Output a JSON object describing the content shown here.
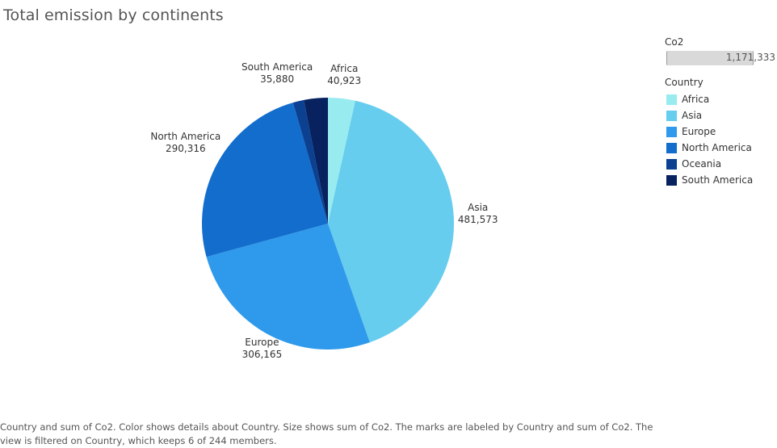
{
  "title": "Total emission by continents",
  "size_legend": {
    "title": "Co2",
    "max_value": "1,171,333"
  },
  "color_legend": {
    "title": "Country",
    "items": [
      {
        "label": "Africa",
        "color": "#98ebee"
      },
      {
        "label": "Asia",
        "color": "#67cdee"
      },
      {
        "label": "Europe",
        "color": "#2f9aeb"
      },
      {
        "label": "North America",
        "color": "#126dcc"
      },
      {
        "label": "Oceania",
        "color": "#0b4190"
      },
      {
        "label": "South America",
        "color": "#082260"
      }
    ]
  },
  "caption": "Country and sum of Co2.  Color shows details about Country.  Size shows sum of Co2.  The marks are labeled by Country and sum of Co2. The view is filtered on Country, which keeps 6 of 244 members.",
  "chart_data": {
    "type": "pie",
    "title": "Total emission by continents",
    "slices": [
      {
        "category": "Africa",
        "value": 40923,
        "label": "40,923",
        "color": "#98ebee"
      },
      {
        "category": "Asia",
        "value": 481573,
        "label": "481,573",
        "color": "#67cdee"
      },
      {
        "category": "Europe",
        "value": 306165,
        "label": "306,165",
        "color": "#2f9aeb"
      },
      {
        "category": "North America",
        "value": 290316,
        "label": "290,316",
        "color": "#126dcc"
      },
      {
        "category": "Oceania",
        "value": 16476,
        "label": "",
        "color": "#0b4190"
      },
      {
        "category": "South America",
        "value": 35880,
        "label": "35,880",
        "color": "#082260"
      }
    ],
    "total": 1171333,
    "legend": "right"
  }
}
